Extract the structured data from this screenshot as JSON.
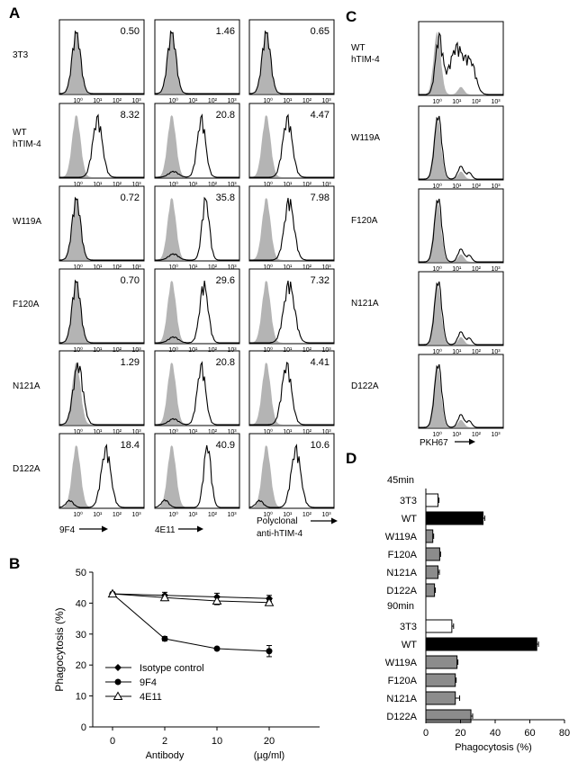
{
  "panels": {
    "A": "A",
    "B": "B",
    "C": "C",
    "D": "D"
  },
  "chart_data": [
    {
      "panel": "A",
      "type": "histogram-grid",
      "rows": [
        "3T3",
        "WT\nhTIM-4",
        "W119A",
        "F120A",
        "N121A",
        "D122A"
      ],
      "columns": [
        "9F4",
        "4E11",
        "Polyclonal\nanti-hTIM-4"
      ],
      "values": [
        [
          "0.50",
          "1.46",
          "0.65"
        ],
        [
          "8.32",
          "20.8",
          "4.47"
        ],
        [
          "0.72",
          "35.8",
          "7.98"
        ],
        [
          "0.70",
          "29.6",
          "7.32"
        ],
        [
          "1.29",
          "20.8",
          "4.41"
        ],
        [
          "18.4",
          "40.9",
          "10.6"
        ]
      ],
      "x_ticks": [
        "10⁰",
        "10¹",
        "10²",
        "10³"
      ]
    },
    {
      "panel": "C",
      "type": "histogram-column",
      "rows": [
        "WT\nhTIM-4",
        "W119A",
        "F120A",
        "N121A",
        "D122A"
      ],
      "xlabel": "PKH67",
      "x_ticks": [
        "10⁰",
        "10¹",
        "10²",
        "10³"
      ]
    },
    {
      "panel": "B",
      "type": "line",
      "categories": [
        "0",
        "2",
        "10",
        "20"
      ],
      "xlabel": "Antibody",
      "xunit": "(µg/ml)",
      "ylabel": "Phagocytosis (%)",
      "ylim": [
        0,
        50
      ],
      "yticks": [
        0,
        10,
        20,
        30,
        40,
        50
      ],
      "series": [
        {
          "name": "Isotype control",
          "marker": "diamond",
          "values": [
            43,
            42.5,
            42,
            41.5
          ],
          "err": [
            0.5,
            1.0,
            1.2,
            1.0
          ]
        },
        {
          "name": "9F4",
          "marker": "circle",
          "values": [
            43,
            28.5,
            25.3,
            24.5
          ],
          "err": [
            0.5,
            0.7,
            0.4,
            1.8
          ]
        },
        {
          "name": "4E11",
          "marker": "triangle",
          "values": [
            43,
            41.8,
            40.7,
            40.2
          ],
          "err": [
            0.5,
            1.0,
            1.2,
            0.8
          ]
        }
      ],
      "legend": "bottom-left"
    },
    {
      "panel": "D",
      "type": "bar-horizontal",
      "xlabel": "Phagocytosis (%)",
      "xlim": [
        0,
        80
      ],
      "xticks": [
        0,
        20,
        40,
        60,
        80
      ],
      "groups": [
        {
          "name": "45min",
          "categories": [
            "3T3",
            "WT",
            "W119A",
            "F120A",
            "N121A",
            "D122A"
          ],
          "values": [
            7,
            33,
            4,
            8,
            7,
            5
          ],
          "err": [
            0.6,
            1.0,
            0.5,
            0.5,
            0.8,
            0.5
          ],
          "fills": [
            "white",
            "black",
            "gray",
            "gray",
            "gray",
            "gray"
          ]
        },
        {
          "name": "90min",
          "categories": [
            "3T3",
            "WT",
            "W119A",
            "F120A",
            "N121A",
            "D122A"
          ],
          "values": [
            15,
            64,
            18,
            17,
            17,
            26
          ],
          "err": [
            1.0,
            1.0,
            0.5,
            0.5,
            2.5,
            1.0
          ],
          "fills": [
            "white",
            "black",
            "gray",
            "gray",
            "gray",
            "gray"
          ]
        }
      ]
    }
  ],
  "colors": {
    "filled": "#b4b4b4",
    "bar_gray": "#8c8c8c",
    "ink": "#000000"
  }
}
